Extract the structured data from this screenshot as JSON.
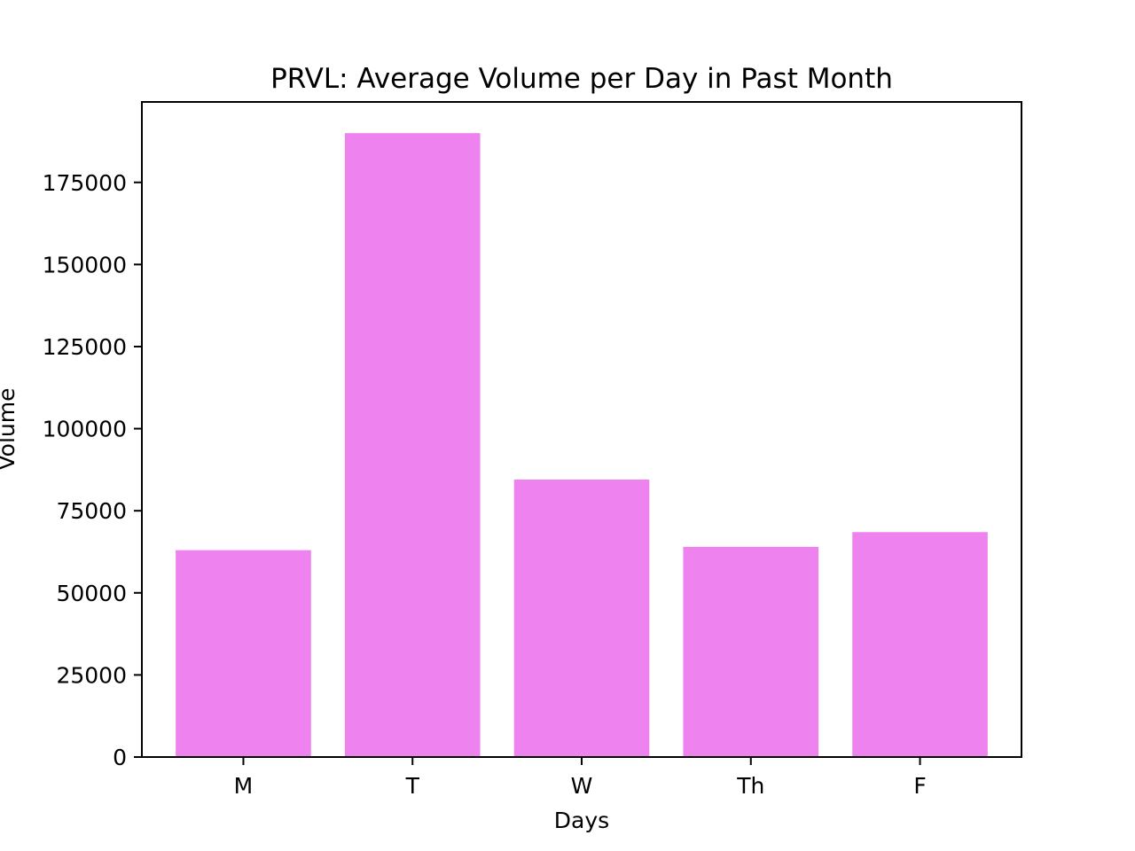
{
  "chart_data": {
    "type": "bar",
    "title": "PRVL: Average Volume per Day in Past Month",
    "xlabel": "Days",
    "ylabel": "Volume",
    "categories": [
      "M",
      "T",
      "W",
      "Th",
      "F"
    ],
    "values": [
      63000,
      190000,
      84500,
      64000,
      68500
    ],
    "ylim": [
      0,
      199500
    ],
    "yticks": [
      0,
      25000,
      50000,
      75000,
      100000,
      125000,
      150000,
      175000
    ],
    "bar_color": "#ee82ee",
    "grid": false,
    "legend": false
  }
}
